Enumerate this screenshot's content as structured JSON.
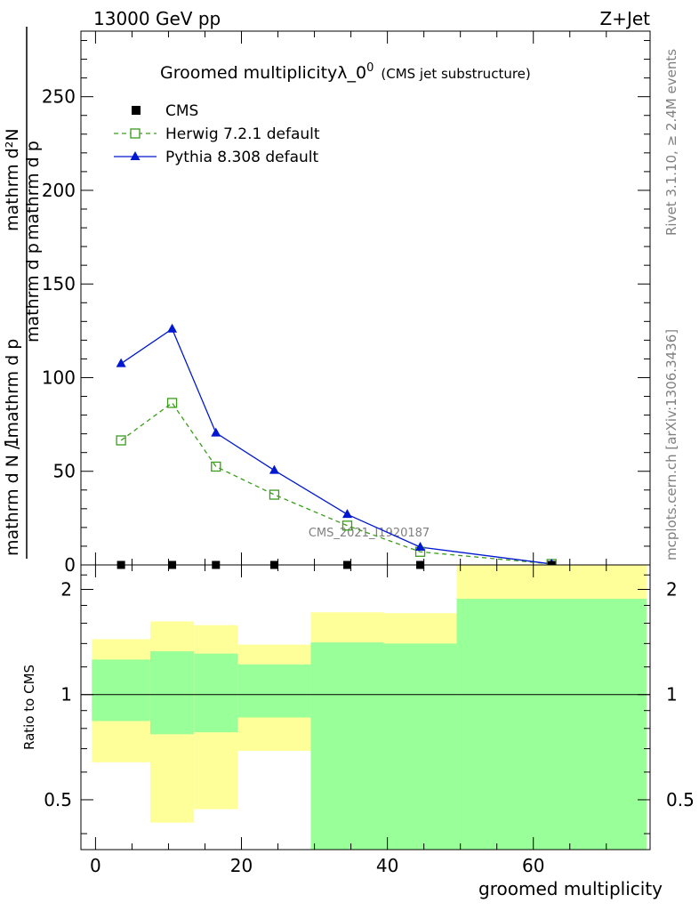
{
  "header": {
    "left": "13000 GeV pp",
    "right": "Z+Jet"
  },
  "side_labels": {
    "rivet": "Rivet 3.1.10, ≥ 2.4M events",
    "mcplots": "mcplots.cern.ch [arXiv:1306.3436]"
  },
  "watermark": "CMS_2021_I1920187",
  "colors": {
    "herwig": "#3a9c1a",
    "pythia": "#0018d0",
    "band_inner": "#99ff99",
    "band_outer": "#ffff99",
    "cms": "#000000"
  },
  "chart_data": [
    {
      "type": "line",
      "title_main": "Groomed multiplicityλ_0",
      "title_sup": "0",
      "title_sub": "(CMS jet substructure)",
      "ylabel_top": "mathrm d²N",
      "ylabel_top_sup": "2",
      "ylabel_bottom": "mathrm d p",
      "ylabel_1": "1",
      "ylabel_denominator": "mathrm d N / mathrm d p",
      "ylim": [
        0,
        285
      ],
      "yticks": [
        0,
        50,
        100,
        150,
        200,
        250
      ],
      "xlim": [
        -2,
        76
      ],
      "legend_position": "top-left",
      "series": [
        {
          "name": "CMS",
          "style": "square-markers",
          "x": [
            3.5,
            10.5,
            16.5,
            24.5,
            34.5,
            44.5,
            62.5
          ],
          "y": [
            0,
            0,
            0,
            0,
            0,
            0,
            0
          ]
        },
        {
          "name": "Herwig 7.2.1 default",
          "style": "dashed-open-square",
          "x": [
            3.5,
            10.5,
            16.5,
            24.5,
            34.5,
            44.5,
            62.5
          ],
          "y": [
            66.5,
            86.5,
            52.5,
            37.5,
            21,
            7,
            0.5
          ]
        },
        {
          "name": "Pythia 8.308 default",
          "style": "solid-triangle",
          "x": [
            3.5,
            10.5,
            16.5,
            24.5,
            34.5,
            44.5,
            62.5
          ],
          "y": [
            107.5,
            126,
            70.5,
            50.5,
            27,
            9.5,
            0.5
          ]
        }
      ]
    },
    {
      "type": "area",
      "ylabel": "Ratio to CMS",
      "xlabel": "groomed multiplicity",
      "scale": "log",
      "ylim": [
        0.36,
        2.35
      ],
      "yticks": [
        0.5,
        1,
        2
      ],
      "xticks": [
        0,
        20,
        40,
        60
      ],
      "xlim": [
        -2,
        76
      ],
      "reference_line": 1,
      "bins": [
        {
          "lo": -0.5,
          "hi": 7.5,
          "inner": [
            0.84,
            1.26
          ],
          "outer": [
            0.64,
            1.44
          ]
        },
        {
          "lo": 7.5,
          "hi": 13.5,
          "inner": [
            0.77,
            1.33
          ],
          "outer": [
            0.43,
            1.62
          ]
        },
        {
          "lo": 13.5,
          "hi": 19.5,
          "inner": [
            0.78,
            1.31
          ],
          "outer": [
            0.47,
            1.58
          ]
        },
        {
          "lo": 19.5,
          "hi": 29.5,
          "inner": [
            0.86,
            1.22
          ],
          "outer": [
            0.69,
            1.39
          ]
        },
        {
          "lo": 29.5,
          "hi": 39.5,
          "inner": [
            0.36,
            1.41
          ],
          "outer": [
            0.36,
            1.72
          ]
        },
        {
          "lo": 39.5,
          "hi": 49.5,
          "inner": [
            0.36,
            1.4
          ],
          "outer": [
            0.36,
            1.71
          ]
        },
        {
          "lo": 49.5,
          "hi": 75.5,
          "inner": [
            0.36,
            1.88
          ],
          "outer": [
            0.36,
            2.35
          ]
        }
      ]
    }
  ]
}
